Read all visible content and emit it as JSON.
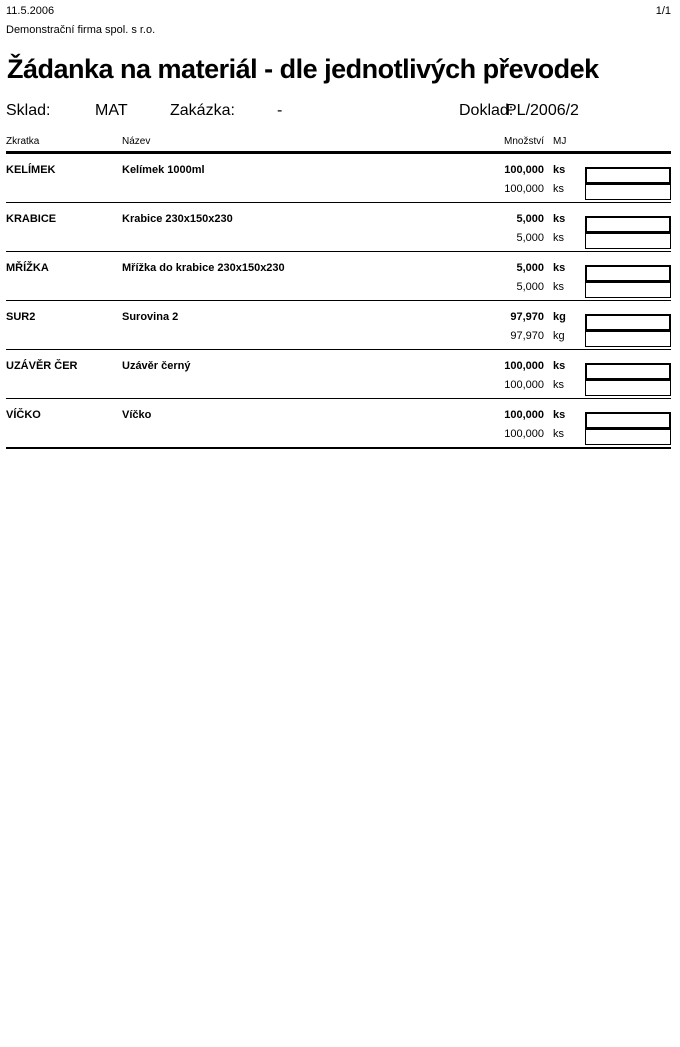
{
  "page": {
    "date": "11.5.2006",
    "page_number": "1/1",
    "company": "Demonstrační firma spol. s r.o.",
    "title": "Žádanka na materiál - dle jednotlivých převodek"
  },
  "info": {
    "sklad_label": "Sklad:",
    "sklad_value": "MAT",
    "zakazka_label": "Zakázka:",
    "zakazka_value": "-",
    "doklad_label": "Doklad:",
    "doklad_value": "PL/2006/2"
  },
  "table": {
    "headers": {
      "zkratka": "Zkratka",
      "nazev": "Název",
      "mnozstvi": "Množství",
      "mj": "MJ"
    },
    "rows": [
      {
        "zkratka": "KELÍMEK",
        "nazev": "Kelímek 1000ml",
        "qty": "100,000",
        "mj": "ks",
        "qty2": "100,000",
        "mj2": "ks"
      },
      {
        "zkratka": "KRABICE",
        "nazev": "Krabice 230x150x230",
        "qty": "5,000",
        "mj": "ks",
        "qty2": "5,000",
        "mj2": "ks"
      },
      {
        "zkratka": "MŘÍŽKA",
        "nazev": "Mřížka do krabice 230x150x230",
        "qty": "5,000",
        "mj": "ks",
        "qty2": "5,000",
        "mj2": "ks"
      },
      {
        "zkratka": "SUR2",
        "nazev": "Surovina 2",
        "qty": "97,970",
        "mj": "kg",
        "qty2": "97,970",
        "mj2": "kg"
      },
      {
        "zkratka": "UZÁVĚR ČER",
        "nazev": "Uzávěr černý",
        "qty": "100,000",
        "mj": "ks",
        "qty2": "100,000",
        "mj2": "ks"
      },
      {
        "zkratka": "VÍČKO",
        "nazev": "Víčko",
        "qty": "100,000",
        "mj": "ks",
        "qty2": "100,000",
        "mj2": "ks"
      }
    ]
  }
}
